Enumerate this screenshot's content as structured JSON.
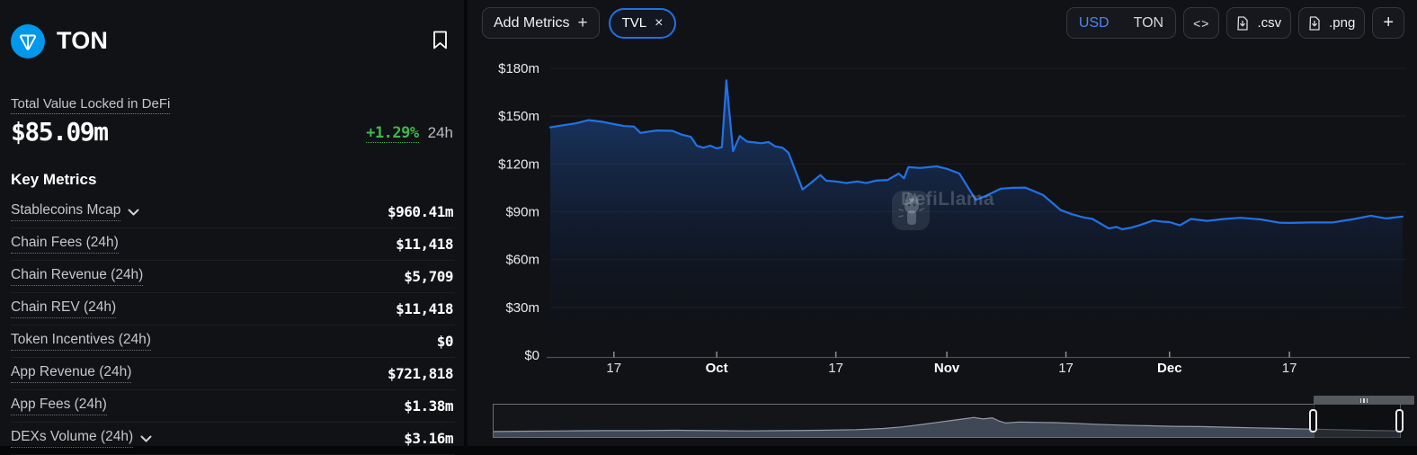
{
  "sidebar": {
    "title": "TON",
    "logo_color": "#0098ea",
    "tvl": {
      "label": "Total Value Locked in DeFi",
      "value": "$85.09m",
      "change": "+1.29%",
      "period": "24h"
    },
    "key_metrics_title": "Key Metrics",
    "metrics": [
      {
        "label": "Stablecoins Mcap",
        "value": "$960.41m",
        "expandable": true
      },
      {
        "label": "Chain Fees (24h)",
        "value": "$11,418",
        "expandable": false
      },
      {
        "label": "Chain Revenue (24h)",
        "value": "$5,709",
        "expandable": false
      },
      {
        "label": "Chain REV (24h)",
        "value": "$11,418",
        "expandable": false
      },
      {
        "label": "Token Incentives (24h)",
        "value": "$0",
        "expandable": false
      },
      {
        "label": "App Revenue (24h)",
        "value": "$721,818",
        "expandable": false
      },
      {
        "label": "App Fees (24h)",
        "value": "$1.38m",
        "expandable": false
      },
      {
        "label": "DEXs Volume (24h)",
        "value": "$3.16m",
        "expandable": true
      }
    ]
  },
  "toolbar": {
    "add_metrics": "Add Metrics",
    "add_metrics_icon": "+",
    "pill": {
      "label": "TVL",
      "close": "×"
    },
    "currency": {
      "options": [
        "USD",
        "TON"
      ],
      "selected": "USD"
    },
    "embed": "<>",
    "csv": ".csv",
    "png": ".png",
    "add": "+"
  },
  "watermark": {
    "text": "DefiLlama"
  },
  "colors": {
    "accent_blue": "#2172e5",
    "positive_green": "#3fb84f",
    "ton_blue": "#0098ea",
    "panel_bg": "#111216"
  },
  "chart_data": {
    "type": "area",
    "title": "TON Total Value Locked (TVL)",
    "unit": "USD millions",
    "ylim": [
      0,
      180
    ],
    "y_ticks": [
      {
        "v": 0,
        "label": "$0"
      },
      {
        "v": 30,
        "label": "$30m"
      },
      {
        "v": 60,
        "label": "$60m"
      },
      {
        "v": 90,
        "label": "$90m"
      },
      {
        "v": 120,
        "label": "$120m"
      },
      {
        "v": 150,
        "label": "$150m"
      },
      {
        "v": 180,
        "label": "$180m"
      }
    ],
    "x_range_days": 115.2,
    "x_ticks": [
      {
        "t": 8.6,
        "label": "17",
        "bold": false
      },
      {
        "t": 22.5,
        "label": "Oct",
        "bold": true
      },
      {
        "t": 38.6,
        "label": "17",
        "bold": false
      },
      {
        "t": 53.6,
        "label": "Nov",
        "bold": true
      },
      {
        "t": 69.7,
        "label": "17",
        "bold": false
      },
      {
        "t": 83.7,
        "label": "Dec",
        "bold": true
      },
      {
        "t": 99.9,
        "label": "17",
        "bold": false
      }
    ],
    "grid": true,
    "legend": "none",
    "series_name": "TVL",
    "points_day_value_musd": [
      [
        0,
        143
      ],
      [
        2,
        144.5
      ],
      [
        3.5,
        145.5
      ],
      [
        5.2,
        147.5
      ],
      [
        7,
        146.5
      ],
      [
        8.6,
        145
      ],
      [
        10,
        143.8
      ],
      [
        11.3,
        143.5
      ],
      [
        12.2,
        139.5
      ],
      [
        13.2,
        140.2
      ],
      [
        14.4,
        141
      ],
      [
        16.5,
        140.8
      ],
      [
        17.7,
        138.5
      ],
      [
        19,
        137
      ],
      [
        19.8,
        131.5
      ],
      [
        20.7,
        130.2
      ],
      [
        21.6,
        131.5
      ],
      [
        22.5,
        129.8
      ],
      [
        23.2,
        130.5
      ],
      [
        23.8,
        172.5
      ],
      [
        24.7,
        128
      ],
      [
        25.6,
        137.5
      ],
      [
        26.6,
        134
      ],
      [
        27.6,
        133.5
      ],
      [
        28.5,
        133
      ],
      [
        29.5,
        133.8
      ],
      [
        30.4,
        131
      ],
      [
        31.4,
        130.2
      ],
      [
        32.2,
        127
      ],
      [
        34.1,
        104
      ],
      [
        35.2,
        108
      ],
      [
        36.5,
        113
      ],
      [
        37.3,
        109.5
      ],
      [
        38.6,
        109
      ],
      [
        40,
        108
      ],
      [
        41.5,
        109
      ],
      [
        42.7,
        108
      ],
      [
        44,
        109.5
      ],
      [
        45.6,
        110
      ],
      [
        47.1,
        114
      ],
      [
        47.8,
        111
      ],
      [
        48.4,
        118
      ],
      [
        50,
        117.5
      ],
      [
        52.2,
        118.5
      ],
      [
        53.6,
        117
      ],
      [
        55.3,
        114
      ],
      [
        56.5,
        105
      ],
      [
        57.5,
        97.5
      ],
      [
        58.9,
        100
      ],
      [
        60.9,
        104.5
      ],
      [
        62.5,
        105
      ],
      [
        64.2,
        105.2
      ],
      [
        66.6,
        100.5
      ],
      [
        68,
        95
      ],
      [
        69,
        91
      ],
      [
        70.5,
        88.5
      ],
      [
        72,
        86.5
      ],
      [
        73.3,
        85.5
      ],
      [
        75.5,
        79.5
      ],
      [
        76.5,
        80.5
      ],
      [
        77.3,
        79
      ],
      [
        78.5,
        80
      ],
      [
        79.6,
        81.5
      ],
      [
        81.5,
        84.5
      ],
      [
        82.7,
        83.8
      ],
      [
        83.7,
        83.5
      ],
      [
        85.1,
        81.5
      ],
      [
        86.6,
        85.5
      ],
      [
        88.8,
        84.3
      ],
      [
        91.1,
        85.5
      ],
      [
        93.3,
        86.2
      ],
      [
        96,
        85.2
      ],
      [
        98.5,
        83.2
      ],
      [
        99.9,
        83
      ],
      [
        102.7,
        83.3
      ],
      [
        105.7,
        83.3
      ],
      [
        108.7,
        85.5
      ],
      [
        110.9,
        87.5
      ],
      [
        113,
        85.8
      ],
      [
        115.2,
        87
      ]
    ],
    "line_color": "#2172e5",
    "brush": {
      "description": "all-time TVL minimap in zoom slider",
      "selection_fraction": [
        0.902,
        1.0
      ],
      "points_frac_heightpct": [
        [
          0,
          18
        ],
        [
          0.04,
          19
        ],
        [
          0.08,
          20
        ],
        [
          0.12,
          21
        ],
        [
          0.16,
          21
        ],
        [
          0.2,
          22
        ],
        [
          0.24,
          21
        ],
        [
          0.28,
          20
        ],
        [
          0.32,
          21
        ],
        [
          0.36,
          22
        ],
        [
          0.4,
          24
        ],
        [
          0.43,
          28
        ],
        [
          0.45,
          33
        ],
        [
          0.47,
          40
        ],
        [
          0.49,
          48
        ],
        [
          0.505,
          54
        ],
        [
          0.52,
          60
        ],
        [
          0.53,
          64
        ],
        [
          0.54,
          59
        ],
        [
          0.55,
          63
        ],
        [
          0.558,
          52
        ],
        [
          0.565,
          46
        ],
        [
          0.58,
          49
        ],
        [
          0.6,
          48
        ],
        [
          0.62,
          47
        ],
        [
          0.64,
          45
        ],
        [
          0.66,
          42
        ],
        [
          0.69,
          39
        ],
        [
          0.72,
          37
        ],
        [
          0.75,
          35
        ],
        [
          0.78,
          34
        ],
        [
          0.81,
          32
        ],
        [
          0.84,
          30
        ],
        [
          0.87,
          28
        ],
        [
          0.9,
          26
        ],
        [
          0.93,
          24
        ],
        [
          0.96,
          22
        ],
        [
          1,
          20
        ]
      ]
    }
  }
}
